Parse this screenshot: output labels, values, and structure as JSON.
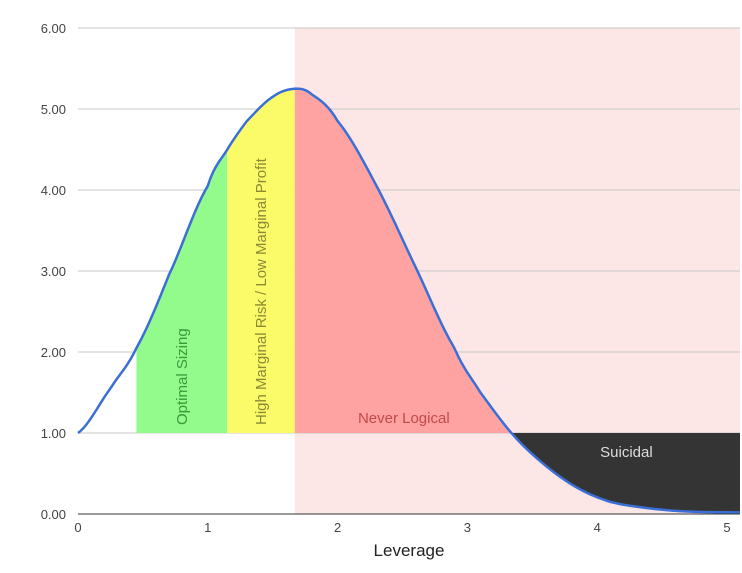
{
  "chart_data": {
    "type": "area",
    "title": "",
    "xlabel": "Leverage",
    "ylabel": "",
    "xlim": [
      0,
      5.1
    ],
    "ylim": [
      0,
      6
    ],
    "grid": true,
    "x_ticks": [
      "0",
      "1",
      "2",
      "3",
      "4",
      "5"
    ],
    "y_ticks": [
      "0.00",
      "1.00",
      "2.00",
      "3.00",
      "4.00",
      "5.00",
      "6.00"
    ],
    "curve": {
      "x": [
        0,
        0.25,
        0.45,
        0.7,
        1.0,
        1.15,
        1.3,
        1.5,
        1.67,
        1.8,
        2.0,
        2.3,
        2.6,
        2.9,
        3.1,
        3.35,
        3.6,
        3.85,
        4.1,
        4.4,
        4.7,
        5.1
      ],
      "y": [
        1.0,
        1.55,
        2.05,
        2.95,
        4.05,
        4.5,
        4.85,
        5.15,
        5.25,
        5.18,
        4.85,
        4.05,
        3.05,
        2.05,
        1.5,
        0.98,
        0.6,
        0.32,
        0.15,
        0.07,
        0.03,
        0.02
      ],
      "color": "#3a6fd6"
    },
    "baseline": 1.0,
    "zones": [
      {
        "label": "Optimal Sizing",
        "x_start": 0.45,
        "x_end": 1.15,
        "fill": "#93fb8c",
        "text_color": "#3a9a3a",
        "orientation": "vertical"
      },
      {
        "label": "High Marginal Risk / Low Marginal Profit",
        "x_start": 1.15,
        "x_end": 1.67,
        "fill": "#fbfb6a",
        "text_color": "#8a8a35",
        "orientation": "vertical"
      },
      {
        "label": "Never Logical",
        "x_start": 1.67,
        "x_end": 3.35,
        "fill": "#fea3a1",
        "text_color": "#c24a4a",
        "orientation": "horizontal"
      },
      {
        "label": "Suicidal",
        "x_start": 3.35,
        "x_end": 5.1,
        "fill": "#343434",
        "text_color": "#dddddd",
        "orientation": "horizontal"
      }
    ],
    "background_band": {
      "x_start": 1.67,
      "x_end": 5.1,
      "fill": "#fde6e6"
    }
  }
}
